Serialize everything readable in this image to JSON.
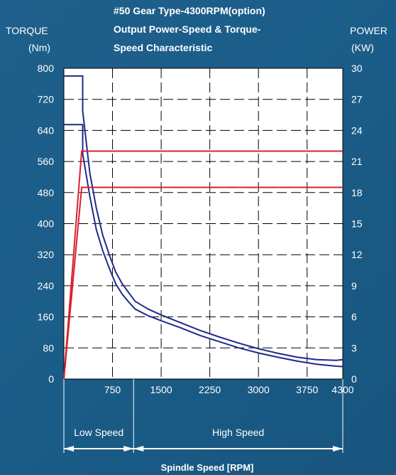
{
  "chart_data": {
    "type": "line",
    "title_lines": [
      "#50 Gear Type-4300RPM(option)",
      "Output Power-Speed & Torque-",
      "Speed Characteristic"
    ],
    "ylabel_left": [
      "TORQUE",
      "(Nm)"
    ],
    "ylabel_right": [
      "POWER",
      "(KW)"
    ],
    "xlabel": "Spindle Speed [RPM]",
    "xlim": [
      0,
      4300
    ],
    "ylim_left": [
      0,
      800
    ],
    "ylim_right": [
      0,
      30
    ],
    "x_ticks": [
      750,
      1500,
      2250,
      3000,
      3750,
      4300
    ],
    "y_left_ticks": [
      0,
      80,
      160,
      240,
      320,
      400,
      480,
      560,
      640,
      720,
      800
    ],
    "y_right_ticks": [
      0,
      3,
      6,
      9,
      12,
      15,
      18,
      21,
      24,
      27,
      30
    ],
    "grid": true,
    "ranges": [
      {
        "label": "Low Speed",
        "x": [
          0,
          1075
        ]
      },
      {
        "label": "High Speed",
        "x": [
          1075,
          4300
        ]
      }
    ],
    "series": [
      {
        "axis": "left",
        "color": "#1f2a8a",
        "x": [
          0,
          290,
          290,
          400,
          500,
          600,
          700,
          800,
          900,
          1000,
          1100,
          1300,
          1500,
          1800,
          2100,
          2400,
          2700,
          3000,
          3300,
          3600,
          3900,
          4200,
          4300
        ],
        "y": [
          780,
          780,
          690,
          530,
          440,
          370,
          320,
          275,
          245,
          222,
          200,
          180,
          165,
          145,
          125,
          108,
          92,
          78,
          66,
          56,
          50,
          48,
          50
        ]
      },
      {
        "axis": "left",
        "color": "#1f2a8a",
        "x": [
          0,
          290,
          290,
          400,
          500,
          600,
          700,
          800,
          900,
          1000,
          1100,
          1300,
          1500,
          1800,
          2100,
          2400,
          2700,
          3000,
          3300,
          3600,
          3900,
          4200,
          4300
        ],
        "y": [
          655,
          655,
          580,
          470,
          385,
          330,
          285,
          245,
          218,
          198,
          180,
          163,
          150,
          132,
          112,
          96,
          80,
          67,
          56,
          46,
          38,
          33,
          32
        ]
      },
      {
        "axis": "right",
        "color": "#d8202c",
        "x": [
          0,
          275,
          4300
        ],
        "y": [
          0,
          22,
          22
        ]
      },
      {
        "axis": "right",
        "color": "#d8202c",
        "x": [
          0,
          275,
          4300
        ],
        "y": [
          0,
          18.5,
          18.5
        ]
      }
    ]
  }
}
